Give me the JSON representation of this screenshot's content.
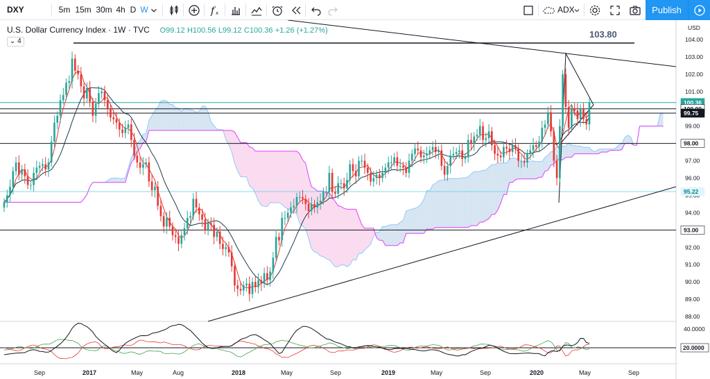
{
  "toolbar": {
    "symbol": "DXY",
    "intervals": [
      "5m",
      "15m",
      "30m",
      "4h",
      "D",
      "W"
    ],
    "active_interval": "W",
    "compare_label": "ADX",
    "publish_label": "Publish",
    "icons": [
      "chevron-down-icon",
      "candles-icon",
      "add-compare-icon",
      "indicators-icon",
      "bar-chart-icon",
      "templates-icon",
      "alert-icon",
      "replay-icon",
      "undo-icon",
      "redo-icon",
      "fullscreen-rect-icon",
      "cloud-icon",
      "settings-icon",
      "fullscreen-icon",
      "camera-icon",
      "play-icon"
    ]
  },
  "legend": {
    "title": "U.S. Dollar Currency Index · 1W · TVC",
    "open": "O99.12",
    "high": "H100.56",
    "low": "L99.12",
    "close": "C100.36",
    "change": "+1.26 (+1.27%)",
    "study_toggle": "4"
  },
  "colors": {
    "up": "#26a69a",
    "down": "#e53935",
    "accent": "#2196f3",
    "cloud_blue": "#b7cfe8",
    "cloud_pink": "#f6bde2",
    "pink_line": "#e040fb",
    "lightblue_line": "#90caf9"
  },
  "chart_data": {
    "type": "candlestick",
    "title": "U.S. Dollar Currency Index · 1W · TVC",
    "price_scale": "USD",
    "ylim": [
      88,
      104
    ],
    "y_ticks": [
      "104.00",
      "103.00",
      "102.00",
      "101.00",
      "100.00",
      "99.00",
      "98.00",
      "97.00",
      "96.00",
      "95.00",
      "94.00",
      "93.00",
      "92.00",
      "91.00",
      "90.00",
      "89.00",
      "88.00"
    ],
    "x_ticks": [
      "Sep",
      "2017",
      "May",
      "Aug",
      "2018",
      "May",
      "Sep",
      "2019",
      "May",
      "Sep",
      "2020",
      "May",
      "Sep"
    ],
    "price_labels": [
      {
        "value": 100.36,
        "text": "100.36",
        "color": "#26a69a"
      },
      {
        "value": 100.0,
        "text": "100.00",
        "color": "#131722"
      },
      {
        "value": 99.75,
        "text": "99.75",
        "color": "#ffffff"
      },
      {
        "value": 98.0,
        "text": "98.00",
        "color": "#131722"
      },
      {
        "value": 95.22,
        "text": "95.22",
        "color": "#4dd0e1"
      },
      {
        "value": 93.0,
        "text": "93.00",
        "color": "#131722"
      }
    ],
    "annotation": "103.80",
    "horizontal_levels": [
      103.8,
      100.36,
      100.0,
      99.75,
      98.0,
      95.22,
      93.0
    ],
    "closes": [
      94.6,
      95.0,
      95.5,
      96.4,
      96.9,
      96.2,
      96.5,
      96.1,
      95.6,
      95.6,
      96.3,
      96.6,
      96.7,
      96.8,
      96.5,
      96.9,
      98.1,
      99.2,
      99.6,
      100.5,
      100.8,
      101.5,
      101.6,
      102.9,
      102.2,
      102.0,
      101.3,
      100.6,
      101.2,
      100.4,
      99.6,
      100.3,
      100.9,
      101.0,
      100.5,
      100.0,
      99.5,
      99.4,
      99.2,
      98.8,
      98.6,
      98.9,
      99.1,
      98.2,
      97.3,
      96.9,
      96.6,
      96.8,
      96.9,
      95.8,
      95.3,
      95.5,
      94.4,
      93.8,
      93.2,
      93.7,
      93.2,
      92.7,
      92.6,
      92.2,
      92.7,
      93.1,
      93.7,
      93.8,
      94.8,
      94.3,
      93.9,
      93.6,
      93.0,
      93.4,
      93.3,
      92.6,
      92.9,
      92.2,
      91.9,
      92.0,
      91.7,
      90.9,
      89.8,
      89.6,
      89.5,
      89.8,
      89.9,
      89.3,
      90.0,
      89.7,
      90.1,
      89.9,
      90.5,
      90.1,
      90.6,
      91.4,
      92.6,
      92.4,
      93.7,
      93.7,
      94.0,
      94.3,
      94.4,
      94.9,
      94.9,
      94.8,
      94.5,
      94.1,
      94.5,
      94.3,
      94.6,
      94.7,
      95.2,
      95.2,
      96.3,
      95.2,
      95.1,
      95.7,
      95.7,
      95.4,
      95.9,
      96.8,
      96.4,
      96.1,
      97.0,
      97.0,
      96.6,
      96.3,
      95.8,
      96.0,
      96.2,
      96.0,
      96.3,
      96.6,
      96.9,
      96.9,
      97.2,
      96.7,
      96.7,
      96.6,
      96.3,
      97.0,
      97.4,
      97.7,
      97.6,
      97.2,
      97.3,
      97.4,
      97.6,
      97.8,
      97.5,
      97.6,
      96.7,
      96.2,
      96.7,
      97.3,
      97.4,
      97.5,
      97.6,
      97.1,
      97.2,
      98.2,
      98.0,
      98.4,
      98.5,
      99.0,
      98.2,
      98.3,
      98.7,
      97.9,
      97.4,
      97.3,
      97.2,
      97.8,
      97.7,
      97.5,
      97.9,
      97.7,
      97.0,
      97.0,
      96.9,
      97.4,
      97.6,
      97.9,
      97.8,
      98.1,
      98.9,
      99.1,
      99.8,
      98.7,
      97.0,
      96.0,
      99.0,
      102.0,
      100.1,
      98.9,
      100.0,
      99.9,
      99.4,
      100.0,
      99.4,
      99.1,
      100.36
    ]
  }
}
